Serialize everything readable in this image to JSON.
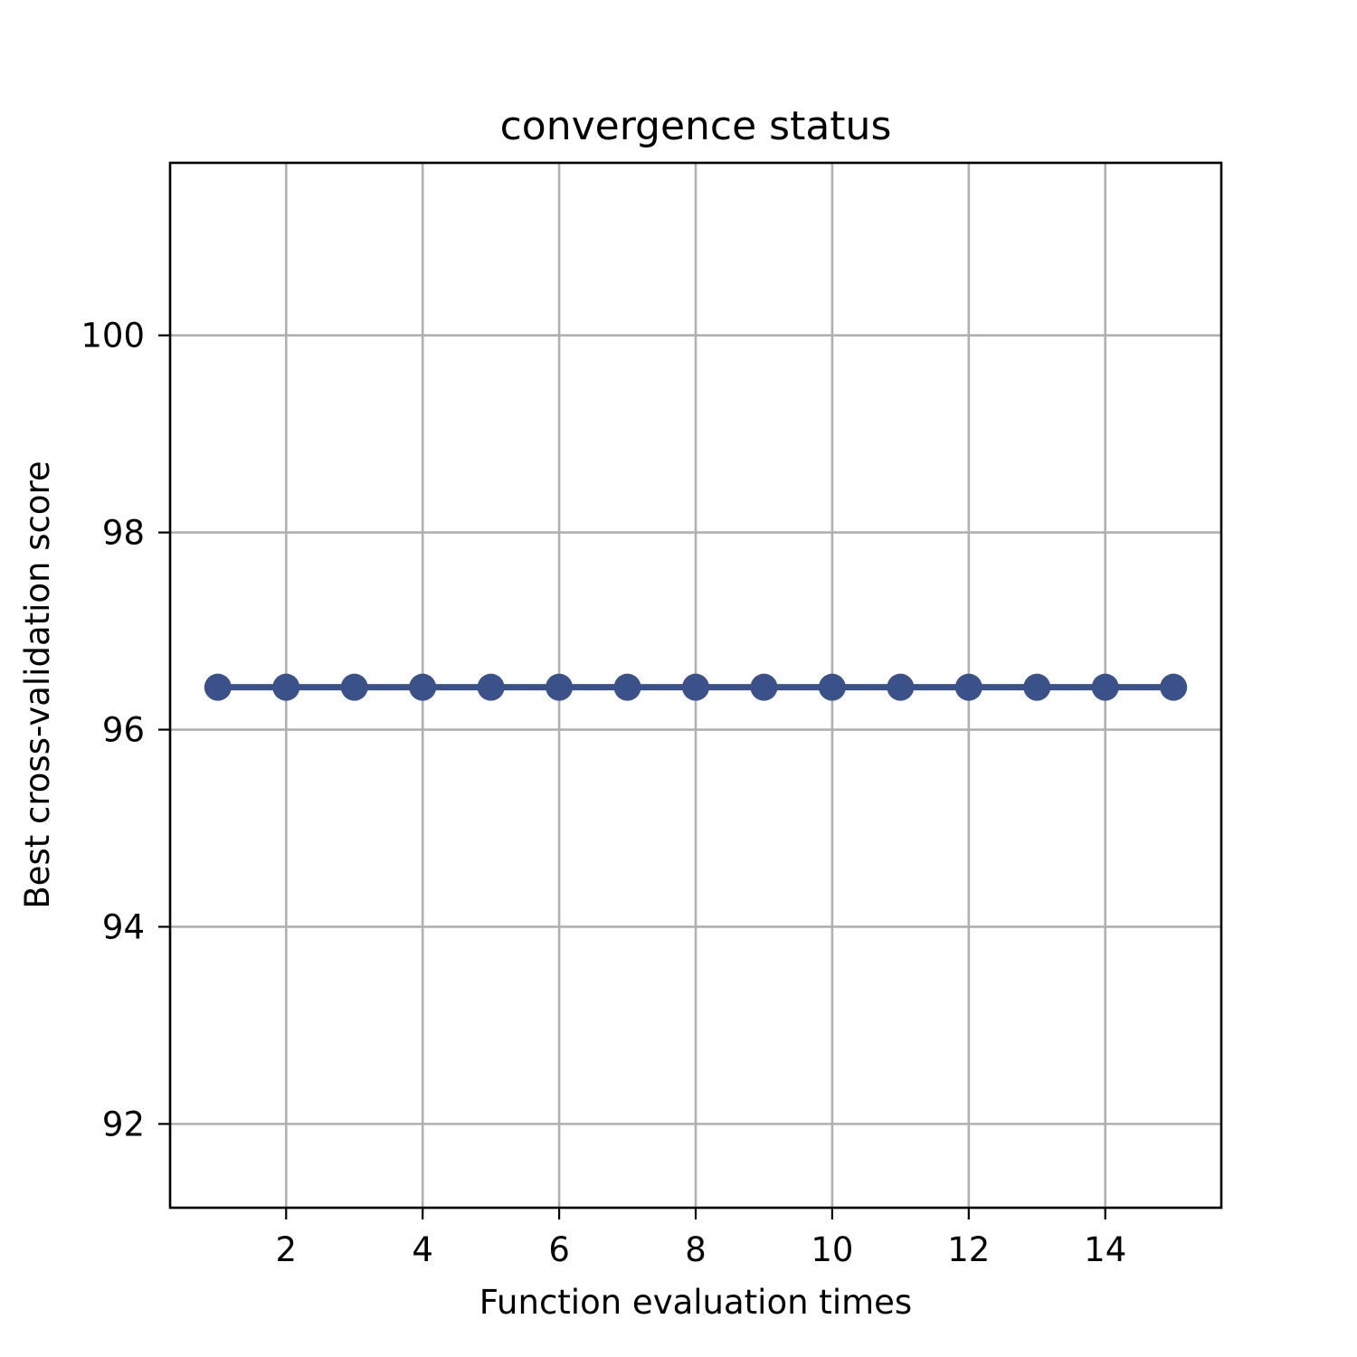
{
  "chart_data": {
    "type": "line",
    "title": "convergence status",
    "xlabel": "Function evaluation times",
    "ylabel": "Best cross-validation score",
    "xlim": [
      0.3,
      15.7
    ],
    "ylim": [
      91.15,
      101.75
    ],
    "xticks": [
      2,
      4,
      6,
      8,
      10,
      12,
      14
    ],
    "yticks": [
      92,
      94,
      96,
      98,
      100
    ],
    "grid": true,
    "series": [
      {
        "color": "#3b5189",
        "marker": "circle",
        "x": [
          1,
          2,
          3,
          4,
          5,
          6,
          7,
          8,
          9,
          10,
          11,
          12,
          13,
          14,
          15
        ],
        "y": [
          96.43,
          96.43,
          96.43,
          96.43,
          96.43,
          96.43,
          96.43,
          96.43,
          96.43,
          96.43,
          96.43,
          96.43,
          96.43,
          96.43,
          96.43
        ]
      }
    ]
  }
}
